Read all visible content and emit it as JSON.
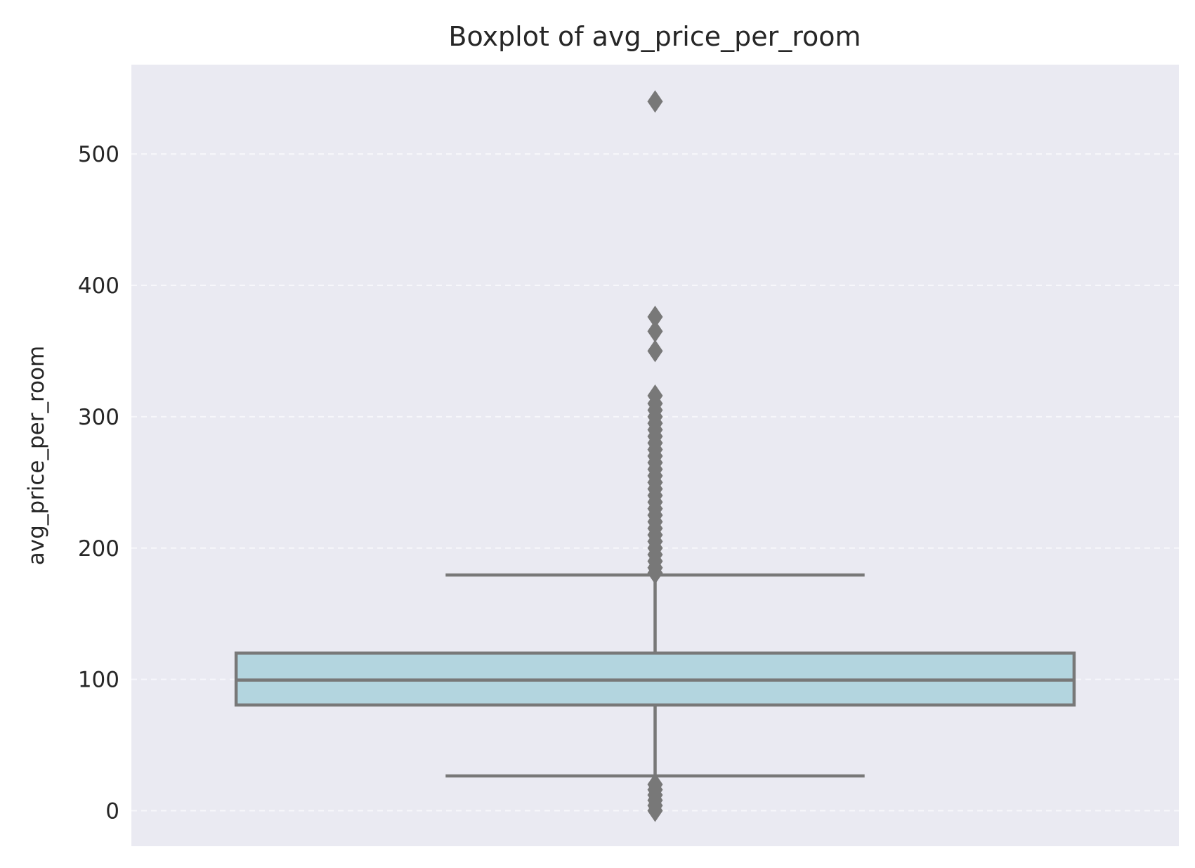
{
  "colors": {
    "plot_background": "#eaeaf2",
    "box_fill": "#b3d5df",
    "box_line": "#787878",
    "outlier": "#787878",
    "grid": "#f7f7fb"
  },
  "chart_data": {
    "type": "box",
    "title": "Boxplot of avg_price_per_room",
    "xlabel": "",
    "ylabel": "avg_price_per_room",
    "ylim": [
      -27,
      568
    ],
    "yticks": [
      0,
      100,
      200,
      300,
      400,
      500
    ],
    "grid": true,
    "grid_style": "dashed horizontal",
    "box": {
      "q1": 80.5,
      "median": 99.5,
      "q3": 120,
      "whisker_low": 26.5,
      "whisker_high": 179.5
    },
    "outliers": [
      540,
      376,
      365,
      350,
      316,
      310,
      305,
      300,
      295,
      290,
      285,
      280,
      275,
      270,
      265,
      260,
      255,
      250,
      245,
      240,
      235,
      230,
      225,
      220,
      215,
      210,
      205,
      200,
      195,
      190,
      185,
      181,
      20,
      16,
      12,
      8,
      4,
      0
    ]
  }
}
